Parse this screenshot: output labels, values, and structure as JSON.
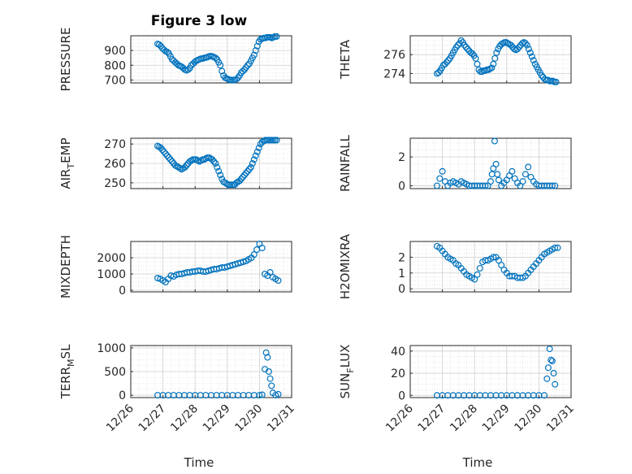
{
  "figure_title": "Figure 3 low",
  "colors": {
    "marker": "#0072BD",
    "axis": "#262626",
    "grid": "#dcdcdc"
  },
  "time_ticks": [
    "12/26",
    "12/27",
    "12/28",
    "12/29",
    "12/30",
    "12/31"
  ],
  "xlabel": "Time",
  "chart_data": [
    {
      "type": "scatter",
      "ylabel": "PRESSURE",
      "ylim": [
        680,
        1000
      ],
      "yticks": [
        700,
        800,
        900
      ],
      "grid": true,
      "x": [
        "12/26 20:00",
        "12/26 21:12",
        "12/26 22:24",
        "12/26 23:36",
        "12/27 00:48",
        "12/27 02:00",
        "12/27 03:12",
        "12/27 04:24",
        "12/27 05:36",
        "12/27 06:48",
        "12/27 08:00",
        "12/27 09:12",
        "12/27 10:24",
        "12/27 11:36",
        "12/27 12:48",
        "12/27 14:00",
        "12/27 15:12",
        "12/27 16:24",
        "12/27 17:36",
        "12/27 18:48",
        "12/27 20:00",
        "12/27 21:12",
        "12/27 22:24",
        "12/27 23:36",
        "12/28 00:48",
        "12/28 02:00",
        "12/28 03:12",
        "12/28 04:24",
        "12/28 05:36",
        "12/28 06:48",
        "12/28 08:00",
        "12/28 09:12",
        "12/28 10:24",
        "12/28 11:36",
        "12/28 12:48",
        "12/28 14:00",
        "12/28 15:12",
        "12/28 16:24",
        "12/28 17:36",
        "12/28 18:48",
        "12/28 20:00",
        "12/28 21:12",
        "12/28 22:24",
        "12/28 23:36",
        "12/29 00:48",
        "12/29 02:00",
        "12/29 03:12",
        "12/29 04:24",
        "12/29 05:36",
        "12/29 06:48",
        "12/29 08:00",
        "12/29 09:12",
        "12/29 10:24",
        "12/29 11:36",
        "12/29 12:48",
        "12/29 14:00",
        "12/29 15:12",
        "12/29 16:24",
        "12/29 17:36",
        "12/29 18:48",
        "12/29 20:00",
        "12/29 21:12",
        "12/29 22:24",
        "12/29 23:36",
        "12/30 00:48",
        "12/30 02:00",
        "12/30 03:12",
        "12/30 04:24",
        "12/30 05:36",
        "12/30 06:48",
        "12/30 08:00",
        "12/30 09:12",
        "12/30 10:24",
        "12/30 11:36",
        "12/30 12:48"
      ],
      "y": [
        945,
        940,
        930,
        915,
        905,
        895,
        890,
        880,
        860,
        840,
        830,
        820,
        810,
        800,
        795,
        790,
        780,
        770,
        765,
        770,
        780,
        800,
        810,
        820,
        830,
        835,
        840,
        845,
        845,
        850,
        852,
        855,
        860,
        862,
        860,
        855,
        850,
        840,
        820,
        800,
        760,
        730,
        715,
        710,
        705,
        700,
        700,
        700,
        700,
        705,
        715,
        730,
        750,
        760,
        770,
        785,
        800,
        810,
        830,
        850,
        870,
        900,
        930,
        960,
        975,
        980,
        985,
        985,
        990,
        990,
        990,
        985,
        990,
        995,
        995
      ]
    },
    {
      "type": "scatter",
      "ylabel": "THETA",
      "ylim": [
        273,
        278
      ],
      "yticks": [
        274,
        276
      ],
      "grid": true,
      "x": [
        "12/26 20:00",
        "12/26 21:12",
        "12/26 22:24",
        "12/26 23:36",
        "12/27 00:48",
        "12/27 02:00",
        "12/27 03:12",
        "12/27 04:24",
        "12/27 05:36",
        "12/27 06:48",
        "12/27 08:00",
        "12/27 09:12",
        "12/27 10:24",
        "12/27 11:36",
        "12/27 12:48",
        "12/27 14:00",
        "12/27 15:12",
        "12/27 16:24",
        "12/27 17:36",
        "12/27 18:48",
        "12/27 20:00",
        "12/27 21:12",
        "12/27 22:24",
        "12/27 23:36",
        "12/28 00:48",
        "12/28 02:00",
        "12/28 03:12",
        "12/28 04:24",
        "12/28 05:36",
        "12/28 06:48",
        "12/28 08:00",
        "12/28 09:12",
        "12/28 10:24",
        "12/28 11:36",
        "12/28 12:48",
        "12/28 14:00",
        "12/28 15:12",
        "12/28 16:24",
        "12/28 17:36",
        "12/28 18:48",
        "12/28 20:00",
        "12/28 21:12",
        "12/28 22:24",
        "12/28 23:36",
        "12/29 00:48",
        "12/29 02:00",
        "12/29 03:12",
        "12/29 04:24",
        "12/29 05:36",
        "12/29 06:48",
        "12/29 08:00",
        "12/29 09:12",
        "12/29 10:24",
        "12/29 11:36",
        "12/29 12:48",
        "12/29 14:00",
        "12/29 15:12",
        "12/29 16:24",
        "12/29 17:36",
        "12/29 18:48",
        "12/29 20:00",
        "12/29 21:12",
        "12/29 22:24",
        "12/29 23:36",
        "12/30 00:48",
        "12/30 02:00",
        "12/30 03:12",
        "12/30 04:24",
        "12/30 05:36",
        "12/30 06:48",
        "12/30 08:00",
        "12/30 09:12",
        "12/30 10:24",
        "12/30 11:36",
        "12/30 12:48"
      ],
      "y": [
        274.0,
        274.1,
        274.3,
        274.6,
        274.9,
        275.0,
        275.2,
        275.4,
        275.6,
        275.9,
        276.2,
        276.5,
        276.8,
        277.0,
        277.2,
        277.5,
        277.3,
        277.0,
        276.8,
        276.6,
        276.4,
        276.2,
        276.1,
        275.9,
        275.6,
        275.0,
        274.4,
        274.2,
        274.2,
        274.3,
        274.3,
        274.4,
        274.4,
        274.5,
        274.6,
        275.0,
        275.6,
        276.2,
        276.6,
        276.9,
        277.1,
        277.2,
        277.3,
        277.3,
        277.2,
        277.1,
        277.0,
        276.8,
        276.6,
        276.5,
        276.6,
        276.8,
        277.0,
        277.2,
        277.3,
        277.2,
        277.0,
        276.6,
        276.2,
        275.8,
        275.4,
        275.0,
        274.7,
        274.4,
        274.1,
        273.8,
        273.6,
        273.4,
        273.3,
        273.3,
        273.2,
        273.2,
        273.2,
        273.1,
        273.1
      ]
    },
    {
      "type": "scatter",
      "ylabel": "AIR_TEMP",
      "ylim": [
        247,
        273
      ],
      "yticks": [
        250,
        260,
        270
      ],
      "grid": true,
      "x": [
        "12/26 20:00",
        "12/26 21:12",
        "12/26 22:24",
        "12/26 23:36",
        "12/27 00:48",
        "12/27 02:00",
        "12/27 03:12",
        "12/27 04:24",
        "12/27 05:36",
        "12/27 06:48",
        "12/27 08:00",
        "12/27 09:12",
        "12/27 10:24",
        "12/27 11:36",
        "12/27 12:48",
        "12/27 14:00",
        "12/27 15:12",
        "12/27 16:24",
        "12/27 17:36",
        "12/27 18:48",
        "12/27 20:00",
        "12/27 21:12",
        "12/27 22:24",
        "12/27 23:36",
        "12/28 00:48",
        "12/28 02:00",
        "12/28 03:12",
        "12/28 04:24",
        "12/28 05:36",
        "12/28 06:48",
        "12/28 08:00",
        "12/28 09:12",
        "12/28 10:24",
        "12/28 11:36",
        "12/28 12:48",
        "12/28 14:00",
        "12/28 15:12",
        "12/28 16:24",
        "12/28 17:36",
        "12/28 18:48",
        "12/28 20:00",
        "12/28 21:12",
        "12/28 22:24",
        "12/28 23:36",
        "12/29 00:48",
        "12/29 02:00",
        "12/29 03:12",
        "12/29 04:24",
        "12/29 05:36",
        "12/29 06:48",
        "12/29 08:00",
        "12/29 09:12",
        "12/29 10:24",
        "12/29 11:36",
        "12/29 12:48",
        "12/29 14:00",
        "12/29 15:12",
        "12/29 16:24",
        "12/29 17:36",
        "12/29 18:48",
        "12/29 20:00",
        "12/29 21:12",
        "12/29 22:24",
        "12/29 23:36",
        "12/30 00:48",
        "12/30 02:00",
        "12/30 03:12",
        "12/30 04:24",
        "12/30 05:36",
        "12/30 06:48",
        "12/30 08:00",
        "12/30 09:12",
        "12/30 10:24",
        "12/30 11:36",
        "12/30 12:48"
      ],
      "y": [
        269,
        268.5,
        268,
        267,
        266,
        265,
        264,
        263,
        262,
        261,
        260,
        259,
        258.5,
        258,
        257.5,
        257,
        257.5,
        258,
        259,
        260,
        261,
        261.5,
        262,
        262,
        262,
        261.5,
        261,
        261.5,
        262,
        262,
        262.5,
        263,
        263,
        262.5,
        262,
        261,
        260,
        258,
        256,
        254,
        252,
        250.5,
        250,
        249.5,
        249,
        249,
        249,
        249,
        249,
        250,
        250.5,
        251,
        252,
        253,
        254,
        255,
        256,
        257,
        258,
        260,
        262,
        264,
        266,
        268,
        270,
        271,
        271.5,
        272,
        272,
        272,
        272,
        272,
        272,
        272,
        272
      ]
    },
    {
      "type": "scatter",
      "ylabel": "RAINFALL",
      "ylim": [
        -0.2,
        3.3
      ],
      "yticks": [
        0,
        2
      ],
      "grid": true,
      "x": [
        "12/26 20:00",
        "12/26 22:00",
        "12/27 00:00",
        "12/27 02:00",
        "12/27 04:00",
        "12/27 06:00",
        "12/27 08:00",
        "12/27 10:00",
        "12/27 12:00",
        "12/27 14:00",
        "12/27 16:00",
        "12/27 18:00",
        "12/27 20:00",
        "12/27 22:00",
        "12/28 00:00",
        "12/28 02:00",
        "12/28 04:00",
        "12/28 06:00",
        "12/28 08:00",
        "12/28 10:00",
        "12/28 12:00",
        "12/28 13:00",
        "12/28 14:00",
        "12/28 15:00",
        "12/28 16:00",
        "12/28 17:00",
        "12/28 18:00",
        "12/28 20:00",
        "12/28 22:00",
        "12/29 00:00",
        "12/29 02:00",
        "12/29 04:00",
        "12/29 06:00",
        "12/29 08:00",
        "12/29 10:00",
        "12/29 12:00",
        "12/29 14:00",
        "12/29 16:00",
        "12/29 18:00",
        "12/29 20:00",
        "12/29 22:00",
        "12/30 00:00",
        "12/30 02:00",
        "12/30 04:00",
        "12/30 06:00",
        "12/30 08:00",
        "12/30 10:00",
        "12/30 12:00"
      ],
      "y": [
        0.0,
        0.5,
        1.0,
        0.3,
        0.0,
        0.2,
        0.3,
        0.2,
        0.1,
        0.3,
        0.2,
        0.1,
        0.0,
        0.0,
        0.0,
        0.0,
        0.0,
        0.0,
        0.0,
        0.0,
        0.3,
        0.8,
        1.2,
        3.1,
        1.5,
        0.8,
        0.4,
        0.0,
        0.2,
        0.4,
        0.7,
        1.0,
        0.5,
        0.2,
        0.0,
        0.3,
        0.8,
        1.3,
        0.6,
        0.3,
        0.1,
        0.0,
        0.0,
        0.0,
        0.0,
        0.0,
        0.0,
        0.0
      ]
    },
    {
      "type": "scatter",
      "ylabel": "MIXDEPTH",
      "ylim": [
        -100,
        3000
      ],
      "yticks": [
        0,
        1000,
        2000
      ],
      "grid": true,
      "x": [
        "12/26 20:00",
        "12/26 22:00",
        "12/27 00:00",
        "12/27 02:00",
        "12/27 04:00",
        "12/27 06:00",
        "12/27 08:00",
        "12/27 10:00",
        "12/27 12:00",
        "12/27 14:00",
        "12/27 16:00",
        "12/27 18:00",
        "12/27 20:00",
        "12/27 22:00",
        "12/28 00:00",
        "12/28 02:00",
        "12/28 04:00",
        "12/28 06:00",
        "12/28 08:00",
        "12/28 10:00",
        "12/28 12:00",
        "12/28 14:00",
        "12/28 16:00",
        "12/28 18:00",
        "12/28 20:00",
        "12/28 22:00",
        "12/29 00:00",
        "12/29 02:00",
        "12/29 04:00",
        "12/29 06:00",
        "12/29 08:00",
        "12/29 10:00",
        "12/29 12:00",
        "12/29 14:00",
        "12/29 16:00",
        "12/29 18:00",
        "12/29 20:00",
        "12/29 22:00",
        "12/30 00:00",
        "12/30 02:00",
        "12/30 04:00",
        "12/30 06:00",
        "12/30 08:00",
        "12/30 10:00",
        "12/30 12:00",
        "12/30 14:00"
      ],
      "y": [
        750,
        700,
        600,
        500,
        700,
        900,
        850,
        950,
        1000,
        1000,
        1050,
        1100,
        1100,
        1150,
        1150,
        1200,
        1200,
        1150,
        1150,
        1200,
        1250,
        1300,
        1300,
        1350,
        1400,
        1400,
        1450,
        1500,
        1550,
        1600,
        1650,
        1700,
        1750,
        1800,
        1900,
        2000,
        2200,
        2500,
        2850,
        2600,
        1000,
        900,
        1100,
        800,
        700,
        600
      ]
    },
    {
      "type": "scatter",
      "ylabel": "H2OMIXRA",
      "ylim": [
        -0.2,
        3.0
      ],
      "yticks": [
        0,
        1,
        2
      ],
      "grid": true,
      "x": [
        "12/26 20:00",
        "12/26 22:00",
        "12/27 00:00",
        "12/27 02:00",
        "12/27 04:00",
        "12/27 06:00",
        "12/27 08:00",
        "12/27 10:00",
        "12/27 12:00",
        "12/27 14:00",
        "12/27 16:00",
        "12/27 18:00",
        "12/27 20:00",
        "12/27 22:00",
        "12/28 00:00",
        "12/28 02:00",
        "12/28 04:00",
        "12/28 06:00",
        "12/28 08:00",
        "12/28 10:00",
        "12/28 12:00",
        "12/28 14:00",
        "12/28 16:00",
        "12/28 18:00",
        "12/28 20:00",
        "12/28 22:00",
        "12/29 00:00",
        "12/29 02:00",
        "12/29 04:00",
        "12/29 06:00",
        "12/29 08:00",
        "12/29 10:00",
        "12/29 12:00",
        "12/29 14:00",
        "12/29 16:00",
        "12/29 18:00",
        "12/29 20:00",
        "12/29 22:00",
        "12/30 00:00",
        "12/30 02:00",
        "12/30 04:00",
        "12/30 06:00",
        "12/30 08:00",
        "12/30 10:00",
        "12/30 12:00",
        "12/30 14:00"
      ],
      "y": [
        2.7,
        2.6,
        2.4,
        2.2,
        2.0,
        1.9,
        1.8,
        1.6,
        1.5,
        1.3,
        1.1,
        0.9,
        0.8,
        0.7,
        0.6,
        0.9,
        1.3,
        1.7,
        1.8,
        1.8,
        1.9,
        2.0,
        2.0,
        1.8,
        1.5,
        1.2,
        1.0,
        0.8,
        0.8,
        0.8,
        0.7,
        0.7,
        0.7,
        0.8,
        1.0,
        1.2,
        1.4,
        1.6,
        1.8,
        2.0,
        2.2,
        2.3,
        2.4,
        2.5,
        2.6,
        2.6
      ]
    },
    {
      "type": "scatter",
      "ylabel": "TERR_MSL",
      "ylim": [
        -50,
        1050
      ],
      "yticks": [
        0,
        500,
        1000
      ],
      "grid": true,
      "x": [
        "12/26 20:00",
        "12/27 00:00",
        "12/27 04:00",
        "12/27 08:00",
        "12/27 12:00",
        "12/27 16:00",
        "12/27 20:00",
        "12/28 00:00",
        "12/28 04:00",
        "12/28 08:00",
        "12/28 12:00",
        "12/28 16:00",
        "12/28 20:00",
        "12/29 00:00",
        "12/29 04:00",
        "12/29 08:00",
        "12/29 12:00",
        "12/29 16:00",
        "12/29 20:00",
        "12/30 00:00",
        "12/30 02:00",
        "12/30 04:00",
        "12/30 05:00",
        "12/30 06:00",
        "12/30 07:00",
        "12/30 08:00",
        "12/30 09:00",
        "12/30 10:00",
        "12/30 12:00",
        "12/30 14:00"
      ],
      "y": [
        0,
        0,
        0,
        0,
        0,
        0,
        0,
        0,
        0,
        0,
        0,
        0,
        0,
        0,
        0,
        0,
        0,
        0,
        0,
        0,
        10,
        550,
        900,
        800,
        500,
        350,
        200,
        50,
        0,
        20
      ]
    },
    {
      "type": "scatter",
      "ylabel": "SUN_FLUX",
      "ylim": [
        -2,
        45
      ],
      "yticks": [
        0,
        20,
        40
      ],
      "grid": true,
      "x": [
        "12/26 20:00",
        "12/27 00:00",
        "12/27 04:00",
        "12/27 08:00",
        "12/27 12:00",
        "12/27 16:00",
        "12/27 20:00",
        "12/28 00:00",
        "12/28 04:00",
        "12/28 08:00",
        "12/28 12:00",
        "12/28 16:00",
        "12/28 20:00",
        "12/29 00:00",
        "12/29 04:00",
        "12/29 08:00",
        "12/29 12:00",
        "12/29 16:00",
        "12/29 20:00",
        "12/30 00:00",
        "12/30 04:00",
        "12/30 06:00",
        "12/30 07:00",
        "12/30 08:00",
        "12/30 09:00",
        "12/30 10:00",
        "12/30 11:00",
        "12/30 12:00"
      ],
      "y": [
        0,
        0,
        0,
        0,
        0,
        0,
        0,
        0,
        0,
        0,
        0,
        0,
        0,
        0,
        0,
        0,
        0,
        0,
        0,
        0,
        0,
        15,
        25,
        42,
        32,
        31,
        20,
        10
      ]
    }
  ]
}
